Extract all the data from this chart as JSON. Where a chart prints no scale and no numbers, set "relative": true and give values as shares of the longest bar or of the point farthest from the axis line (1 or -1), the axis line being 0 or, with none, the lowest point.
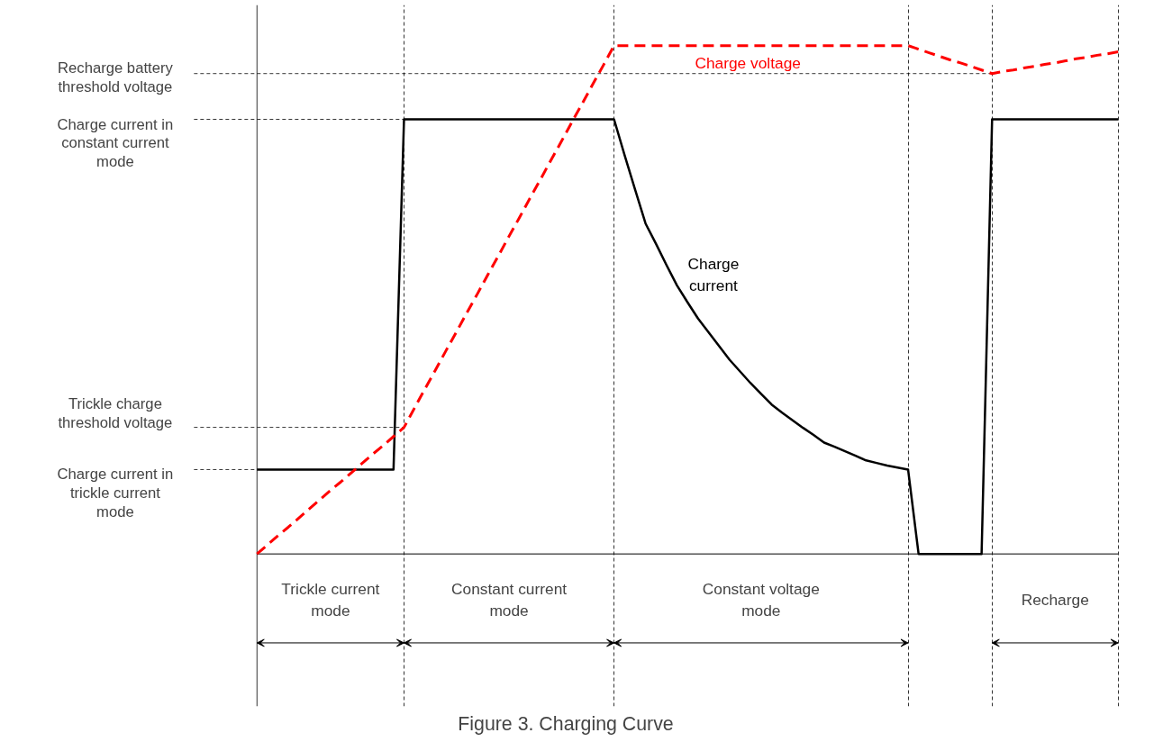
{
  "chart_data": {
    "type": "line",
    "relative": true,
    "title": "Figure 3. Charging Curve",
    "categories": [
      null,
      null,
      null,
      null,
      null,
      null,
      null,
      null,
      null,
      null,
      null,
      null,
      null,
      null,
      null,
      null,
      null,
      null,
      null,
      null,
      null,
      null,
      null,
      null,
      null,
      null,
      null,
      null,
      null,
      null,
      null,
      null,
      null,
      null,
      null,
      null,
      null,
      null,
      null,
      null,
      null,
      null,
      null,
      null,
      null,
      null,
      null,
      null,
      null,
      null,
      null,
      null,
      null,
      null,
      null,
      null,
      null,
      null,
      null,
      null,
      null,
      null,
      null,
      null,
      null,
      null,
      null,
      null,
      null,
      null,
      null,
      null,
      null,
      null,
      null,
      null,
      null,
      null,
      null,
      null,
      null,
      null,
      null
    ],
    "series": [
      {
        "name": "Charge current",
        "color": "#000000",
        "line_style": "solid",
        "values": [
          0.166,
          0.166,
          0.166,
          0.166,
          0.166,
          0.166,
          0.166,
          0.166,
          0.166,
          0.166,
          0.166,
          0.166,
          0.166,
          0.166,
          0.855,
          0.855,
          0.855,
          0.855,
          0.855,
          0.855,
          0.855,
          0.855,
          0.855,
          0.855,
          0.855,
          0.855,
          0.855,
          0.855,
          0.855,
          0.855,
          0.855,
          0.855,
          0.855,
          0.855,
          0.855,
          0.785,
          0.717,
          0.65,
          0.61,
          0.568,
          0.528,
          0.495,
          0.463,
          0.436,
          0.409,
          0.382,
          0.359,
          0.336,
          0.315,
          0.294,
          0.278,
          0.263,
          0.248,
          0.234,
          0.219,
          0.211,
          0.202,
          0.193,
          0.184,
          0.179,
          0.174,
          0.17,
          0.166,
          0,
          0,
          0,
          0,
          0,
          0,
          0,
          0.855,
          0.855,
          0.855,
          0.855,
          0.855,
          0.855,
          0.855,
          0.855,
          0.855,
          0.855,
          0.855,
          0.855,
          0.855
        ]
      },
      {
        "name": "Charge voltage",
        "color": "#ff0000",
        "line_style": "dashed",
        "values": [
          0,
          0.018,
          0.036,
          0.053,
          0.071,
          0.089,
          0.107,
          0.125,
          0.142,
          0.16,
          0.178,
          0.196,
          0.213,
          0.231,
          0.249,
          0.287,
          0.325,
          0.362,
          0.4,
          0.437,
          0.475,
          0.512,
          0.55,
          0.587,
          0.625,
          0.662,
          0.7,
          0.737,
          0.775,
          0.812,
          0.85,
          0.887,
          0.925,
          0.962,
          1.0,
          1.0,
          1.0,
          1.0,
          1.0,
          1.0,
          1.0,
          1.0,
          1.0,
          1.0,
          1.0,
          1.0,
          1.0,
          1.0,
          1.0,
          1.0,
          1.0,
          1.0,
          1.0,
          1.0,
          1.0,
          1.0,
          1.0,
          1.0,
          1.0,
          1.0,
          1.0,
          1.0,
          1.0,
          0.993,
          0.986,
          0.979,
          0.972,
          0.966,
          0.959,
          0.952,
          0.945,
          0.949,
          0.952,
          0.956,
          0.959,
          0.963,
          0.966,
          0.97,
          0.974,
          0.977,
          0.981,
          0.984,
          0.988
        ]
      }
    ],
    "ref_lines": [
      {
        "axis": "y",
        "value": 0.945,
        "label": "Recharge battery threshold voltage"
      },
      {
        "axis": "y",
        "value": 0.855,
        "label": "Charge current in constant current mode"
      },
      {
        "axis": "y",
        "value": 0.249,
        "label": "Trickle charge threshold voltage"
      },
      {
        "axis": "y",
        "value": 0.166,
        "label": "Charge current in trickle current mode"
      }
    ],
    "annotations": [
      "Trickle current mode",
      "Constant current mode",
      "Constant voltage mode",
      "Recharge"
    ],
    "marker": "none",
    "grid": "x"
  }
}
